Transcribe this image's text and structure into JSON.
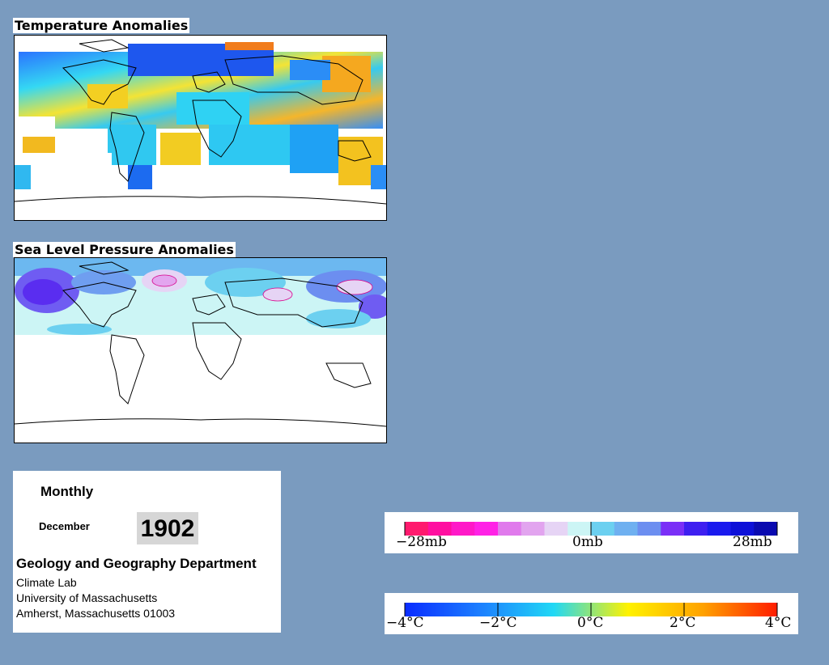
{
  "maps": {
    "temperature_title": "Temperature Anomalies",
    "pressure_title": "Sea Level Pressure Anomalies"
  },
  "info": {
    "mode": "Monthly",
    "month": "December",
    "year": "1902",
    "department": "Geology and Geography Department",
    "lab": "Climate Lab",
    "university": "University of Massachusetts",
    "address": "Amherst, Massachusetts 01003"
  },
  "pressure_legend": {
    "labels": [
      "−28mb",
      "0mb",
      "28mb"
    ],
    "colors": [
      "#ff1a6e",
      "#ff0fa0",
      "#ff19c8",
      "#ff22e6",
      "#e07aec",
      "#e2a4ef",
      "#e6d4f5",
      "#ccf5f5",
      "#6cd0f0",
      "#6fb0f0",
      "#6c8ef0",
      "#7a2ff7",
      "#3e1ff0",
      "#1a1aee",
      "#0d10d8",
      "#0a0ab0"
    ]
  },
  "temperature_legend": {
    "labels": [
      "−4°C",
      "−2°C",
      "0°C",
      "2°C",
      "4°C"
    ],
    "colors": [
      "#0a2cff",
      "#1c7eff",
      "#21d8f5",
      "#fff200",
      "#ffa200",
      "#ff1c00"
    ]
  },
  "colors": {
    "background": "#7a9bbf"
  }
}
